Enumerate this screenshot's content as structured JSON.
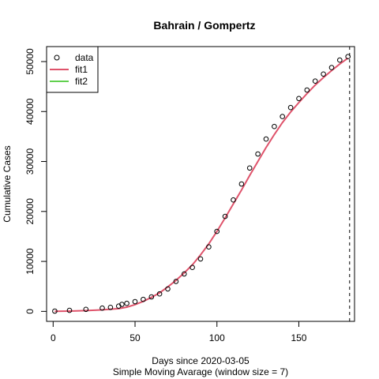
{
  "chart_data": {
    "type": "scatter",
    "title": "Bahrain / Gompertz",
    "xlabel": "Days since 2020-03-05",
    "xlabel_sub": "Simple Moving Avarage (window size = 7)",
    "ylabel": "Cumulative Cases",
    "xlim": [
      -4,
      184
    ],
    "ylim": [
      -2000,
      53000
    ],
    "x_ticks": [
      0,
      50,
      100,
      150
    ],
    "y_ticks": [
      0,
      10000,
      20000,
      30000,
      40000,
      50000
    ],
    "vline_x": 181,
    "legend_position": "top-left",
    "legend": [
      {
        "label": "data",
        "kind": "point",
        "color": "#000000"
      },
      {
        "label": "fit1",
        "kind": "line",
        "color": "#DF536B"
      },
      {
        "label": "fit2",
        "kind": "line",
        "color": "#61D04F"
      }
    ],
    "series": [
      {
        "name": "data",
        "kind": "points",
        "color": "#000000",
        "x": [
          1,
          10,
          20,
          30,
          35,
          40,
          42,
          45,
          50,
          55,
          60,
          65,
          70,
          75,
          80,
          85,
          90,
          95,
          100,
          105,
          110,
          115,
          120,
          125,
          130,
          135,
          140,
          145,
          150,
          155,
          160,
          165,
          170,
          175,
          180
        ],
        "y": [
          50,
          200,
          400,
          650,
          800,
          1050,
          1400,
          1600,
          1950,
          2400,
          2900,
          3500,
          4500,
          6000,
          7500,
          8800,
          10500,
          12900,
          16000,
          19000,
          22300,
          25500,
          28700,
          31500,
          34500,
          37000,
          39000,
          40800,
          42600,
          44300,
          46100,
          47500,
          48800,
          50300,
          51000
        ]
      },
      {
        "name": "fit1",
        "kind": "line",
        "color": "#DF536B",
        "x": [
          1,
          10,
          20,
          30,
          40,
          45,
          50,
          55,
          60,
          65,
          70,
          75,
          80,
          85,
          90,
          95,
          100,
          105,
          110,
          115,
          120,
          125,
          130,
          135,
          140,
          145,
          150,
          155,
          160,
          165,
          170,
          175,
          180
        ],
        "y": [
          0,
          50,
          150,
          300,
          550,
          850,
          1350,
          2000,
          2800,
          3700,
          4900,
          6200,
          7700,
          9300,
          11300,
          13500,
          16000,
          18700,
          21500,
          24300,
          27200,
          30000,
          32800,
          35400,
          37800,
          39900,
          41800,
          43600,
          45300,
          46800,
          48200,
          49500,
          50700
        ]
      },
      {
        "name": "fit2",
        "kind": "line",
        "color": "#61D04F",
        "x": [],
        "y": []
      }
    ]
  }
}
